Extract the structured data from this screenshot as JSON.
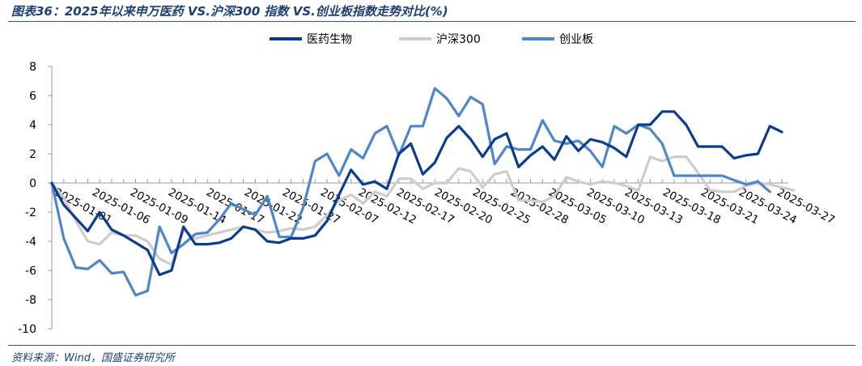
{
  "title": "图表36：2025年以来申万医药 VS.沪深300 指数 VS.创业板指数走势对比(%)",
  "source": "资料来源：Wind，国盛证券研究所",
  "chart_data": {
    "type": "line",
    "ylim": [
      -10,
      8
    ],
    "yticks": [
      -10,
      -8,
      -6,
      -4,
      -2,
      0,
      2,
      4,
      6,
      8
    ],
    "legend_position": "top",
    "grid": false,
    "x_tick_labels": [
      "2025-01-01",
      "2025-01-06",
      "2025-01-09",
      "2025-01-14",
      "2025-01-17",
      "2025-01-22",
      "2025-01-27",
      "2025-02-07",
      "2025-02-12",
      "2025-02-17",
      "2025-02-20",
      "2025-02-25",
      "2025-02-28",
      "2025-03-05",
      "2025-03-10",
      "2025-03-13",
      "2025-03-18",
      "2025-03-21",
      "2025-03-24",
      "2025-03-27"
    ],
    "series": [
      {
        "name": "医药生物",
        "color": "#0d3c8c",
        "width": 3.2,
        "values": [
          0,
          -1.5,
          -2.4,
          -3.3,
          -2,
          -3.2,
          -3.6,
          -4.1,
          -4.6,
          -6.3,
          -6,
          -3,
          -4.2,
          -4.2,
          -4.1,
          -3.8,
          -3,
          -3.2,
          -4,
          -4.1,
          -3.8,
          -3.8,
          -3.6,
          -2.6,
          -0.8,
          0.9,
          -0.1,
          0.1,
          -0.4,
          2,
          2.7,
          0.6,
          1.4,
          3.1,
          3.9,
          3,
          1.8,
          3,
          3.4,
          1.1,
          1.9,
          2.5,
          1.6,
          3.2,
          2.2,
          3,
          2.8,
          2.4,
          1.8,
          4,
          4,
          4.9,
          4.9,
          4,
          2.5,
          2.5,
          2.5,
          1.7,
          1.9,
          2,
          3.9,
          3.5
        ]
      },
      {
        "name": "沪深300",
        "color": "#cdcdcd",
        "width": 3.2,
        "values": [
          0,
          -1,
          -2.6,
          -4,
          -4.2,
          -3.4,
          -3.6,
          -3.6,
          -4,
          -5.2,
          -5.6,
          -3.2,
          -3.8,
          -3.6,
          -3.4,
          -3.2,
          -3,
          -3.2,
          -3.4,
          -3.3,
          -3.1,
          -3.2,
          -3,
          -2.2,
          -1.2,
          -0.8,
          -1.4,
          -0.6,
          -0.9,
          0.3,
          0.3,
          -0.4,
          0,
          0,
          1,
          0.8,
          -0.3,
          0.6,
          0.8,
          -1.2,
          -1.2,
          -1.3,
          -0.9,
          0.4,
          0.1,
          -0.1,
          0.1,
          0,
          -0.2,
          -0.5,
          1.8,
          1.5,
          1.8,
          1.8,
          0.7,
          -0.5,
          -0.6,
          -0.6,
          -0.2,
          0,
          -0.1,
          -0.3,
          -0.5
        ]
      },
      {
        "name": "创业板",
        "color": "#4f86c6",
        "width": 3.2,
        "values": [
          0,
          -3.8,
          -5.8,
          -5.9,
          -5.3,
          -6.2,
          -6.1,
          -7.7,
          -7.4,
          -3,
          -4.8,
          -4.2,
          -3.5,
          -3.4,
          -2.5,
          -1.4,
          -1.8,
          -2.2,
          -0.9,
          -3.7,
          -3.7,
          -1.7,
          1.5,
          2,
          0.5,
          2.3,
          1.7,
          3.4,
          3.9,
          1.9,
          3.9,
          3.9,
          6.5,
          5.8,
          4.6,
          5.9,
          5.4,
          1.3,
          2.5,
          2.3,
          2.3,
          4.3,
          2.9,
          2.7,
          2.9,
          2.2,
          1.1,
          3.9,
          3.4,
          4,
          3.7,
          2.7,
          0.5,
          0.5,
          0.5,
          0.5,
          0.5,
          0.2,
          -0.1,
          0.1,
          -0.6
        ]
      }
    ]
  }
}
